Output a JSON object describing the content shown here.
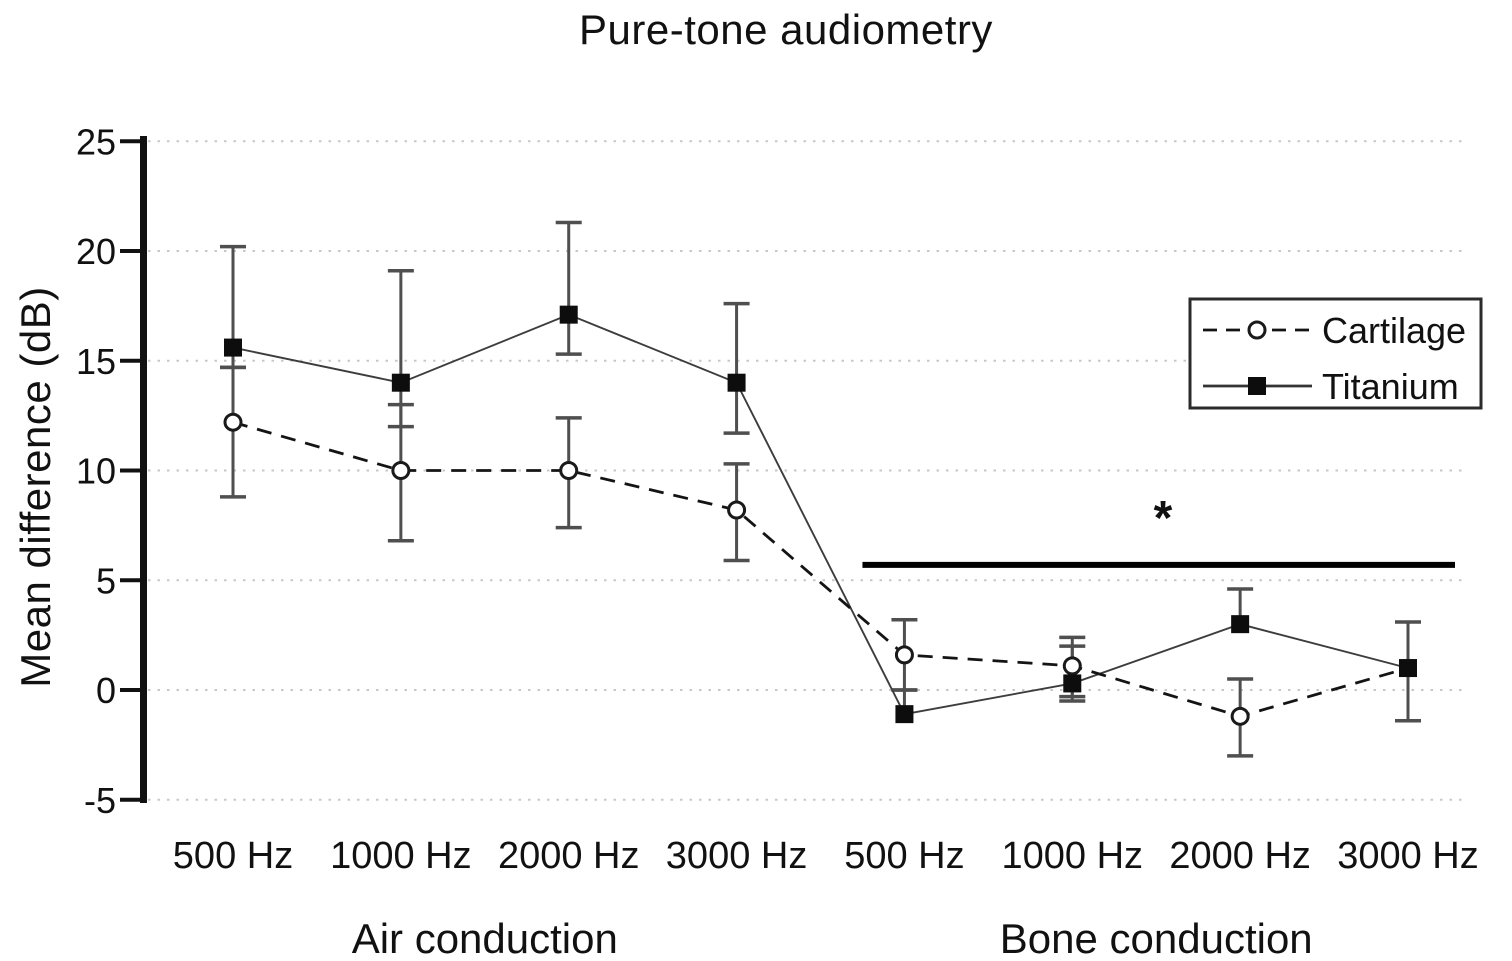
{
  "chart_data": {
    "type": "line",
    "title": "Pure-tone audiometry",
    "ylabel": "Mean difference (dB)",
    "ylim": [
      -5,
      25
    ],
    "yticks": [
      25,
      20,
      15,
      10,
      5,
      0,
      -5
    ],
    "categories": [
      "500 Hz",
      "1000 Hz",
      "2000 Hz",
      "3000 Hz",
      "500 Hz",
      "1000 Hz",
      "2000 Hz",
      "3000 Hz"
    ],
    "groups": [
      {
        "label": "Air conduction",
        "from_index": 0,
        "to_index": 3
      },
      {
        "label": "Bone conduction",
        "from_index": 4,
        "to_index": 7
      }
    ],
    "grid": "dotted-horizontal",
    "legend_position": "upper-right",
    "series": [
      {
        "name": "Cartilage",
        "line_style": "dashed",
        "marker": "open-circle",
        "color": "#141414",
        "points": [
          {
            "v": 12.2,
            "lo": 8.8,
            "hi": 14.7
          },
          {
            "v": 10.0,
            "lo": 6.8,
            "hi": 13.0
          },
          {
            "v": 10.0,
            "lo": 7.4,
            "hi": 12.4
          },
          {
            "v": 8.2,
            "lo": 5.9,
            "hi": 10.3
          },
          {
            "v": 1.6,
            "lo": 0.0,
            "hi": 3.2
          },
          {
            "v": 1.1,
            "lo": -0.3,
            "hi": 2.4
          },
          {
            "v": -1.2,
            "lo": -3.0,
            "hi": 0.5
          },
          {
            "v": 1.0,
            "lo": null,
            "hi": null,
            "hidden_marker": true
          }
        ]
      },
      {
        "name": "Titanium",
        "line_style": "solid",
        "marker": "filled-square",
        "color": "#1a1a1a",
        "points": [
          {
            "v": 15.6,
            "lo": 14.7,
            "hi": 20.2
          },
          {
            "v": 14.0,
            "lo": 12.0,
            "hi": 19.1
          },
          {
            "v": 17.1,
            "lo": 15.3,
            "hi": 21.3
          },
          {
            "v": 14.0,
            "lo": 11.7,
            "hi": 17.6
          },
          {
            "v": -1.1,
            "lo": null,
            "hi": 0.0
          },
          {
            "v": 0.3,
            "lo": -0.5,
            "hi": 2.0
          },
          {
            "v": 3.0,
            "lo": null,
            "hi": 4.6
          },
          {
            "v": 1.0,
            "lo": -1.4,
            "hi": 3.1
          }
        ]
      }
    ],
    "significance": {
      "symbol": "*",
      "applies_to_group": "Bone conduction",
      "bar_y_db": 5.7,
      "bar_from_index": 3.75,
      "bar_to_index": 7.28,
      "symbol_x_index": 5.54,
      "symbol_y_db": 8.2,
      "symbol_color": "#31404b"
    },
    "colors": {
      "background": "#ffffff",
      "axis": "#111111",
      "grid": "#c7c7c7",
      "error_bar": "#4f4f4f",
      "text": "#111111"
    }
  }
}
